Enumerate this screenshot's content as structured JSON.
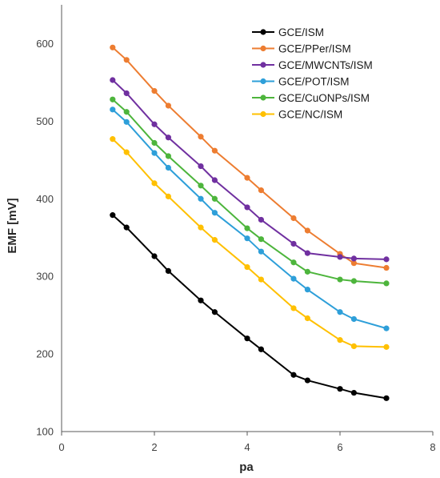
{
  "chart_data": {
    "type": "line",
    "title": "",
    "xlabel": "pa",
    "ylabel": "EMF [mV]",
    "xlim": [
      0,
      8
    ],
    "ylim": [
      100,
      650
    ],
    "xticks": [
      "0",
      "2",
      "4",
      "6",
      "8"
    ],
    "yticks": [
      "100",
      "200",
      "300",
      "400",
      "500",
      "600"
    ],
    "grid": false,
    "legend_position": "top-right",
    "x": [
      1.1,
      1.4,
      2.0,
      2.3,
      3.0,
      3.3,
      4.0,
      4.3,
      5.0,
      5.3,
      6.0,
      6.3,
      7.0
    ],
    "series": [
      {
        "name": "GCE/ISM",
        "color": "#000000",
        "values": [
          379,
          363,
          326,
          307,
          269,
          254,
          220,
          206,
          173,
          166,
          155,
          150,
          143
        ]
      },
      {
        "name": "GCE/PPer/ISM",
        "color": "#ed7d31",
        "values": [
          595,
          579,
          539,
          520,
          480,
          462,
          427,
          411,
          375,
          359,
          329,
          317,
          311
        ]
      },
      {
        "name": "GCE/MWCNTs/ISM",
        "color": "#7030a0",
        "values": [
          553,
          536,
          496,
          479,
          442,
          424,
          389,
          373,
          342,
          330,
          325,
          323,
          322
        ]
      },
      {
        "name": "GCE/POT/ISM",
        "color": "#2e9fd9",
        "values": [
          515,
          499,
          459,
          440,
          400,
          382,
          349,
          332,
          297,
          283,
          254,
          245,
          233
        ]
      },
      {
        "name": "GCE/CuONPs/ISM",
        "color": "#4db53c",
        "values": [
          528,
          512,
          472,
          455,
          417,
          400,
          362,
          348,
          318,
          306,
          296,
          294,
          291
        ]
      },
      {
        "name": "GCE/NC/ISM",
        "color": "#ffc000",
        "values": [
          477,
          460,
          420,
          403,
          363,
          347,
          312,
          296,
          259,
          246,
          218,
          210,
          209
        ]
      }
    ]
  }
}
